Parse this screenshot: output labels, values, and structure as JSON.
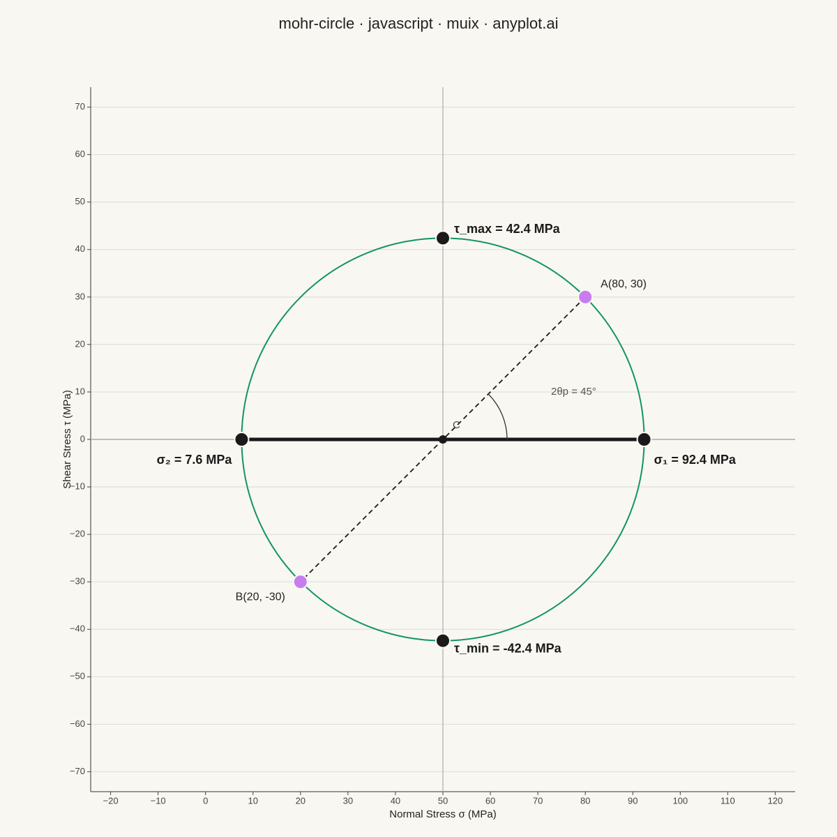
{
  "chart_data": {
    "type": "mohr",
    "title": "mohr-circle · javascript · muix · anyplot.ai",
    "x_label": "Normal Stress σ (MPa)",
    "y_label": "Shear Stress τ (MPa)",
    "xlim": [
      -24.2,
      124.2
    ],
    "ylim": [
      -74.2,
      74.2
    ],
    "xticks": [
      {
        "value": -20,
        "label": "−20"
      },
      {
        "value": -10,
        "label": "−10"
      },
      0,
      10,
      20,
      30,
      40,
      50,
      60,
      70,
      80,
      90,
      100,
      110,
      120
    ],
    "yticks": [
      {
        "value": -70,
        "label": "−70"
      },
      {
        "value": -60,
        "label": "−60"
      },
      {
        "value": -50,
        "label": "−50"
      },
      {
        "value": -40,
        "label": "−40"
      },
      {
        "value": -30,
        "label": "−30"
      },
      {
        "value": -20,
        "label": "−20"
      },
      {
        "value": -10,
        "label": "−10"
      },
      0,
      10,
      20,
      30,
      40,
      50,
      60,
      70
    ],
    "grid": true,
    "circle_color": "#12936b",
    "center": {
      "x": 50,
      "y": 0,
      "label": "C"
    },
    "radius": 42.4,
    "stress_points": [
      {
        "label": "A(80, 30)",
        "x": 80,
        "y": 30,
        "color": "#c77cf0"
      },
      {
        "label": "B(20, -30)",
        "x": 20,
        "y": -30,
        "color": "#c77cf0"
      }
    ],
    "principal": [
      {
        "label": "σ₁ = 92.4 MPa",
        "x": 92.4,
        "y": 0
      },
      {
        "label": "σ₂ = 7.6 MPa",
        "x": 7.6,
        "y": 0
      }
    ],
    "shear": [
      {
        "label": "τ_max = 42.4 MPa",
        "x": 50,
        "y": 42.4
      },
      {
        "label": "τ_min = -42.4 MPa",
        "x": 50,
        "y": -42.4
      }
    ],
    "angle": {
      "label": "2θp = 45°",
      "value": 45
    }
  }
}
